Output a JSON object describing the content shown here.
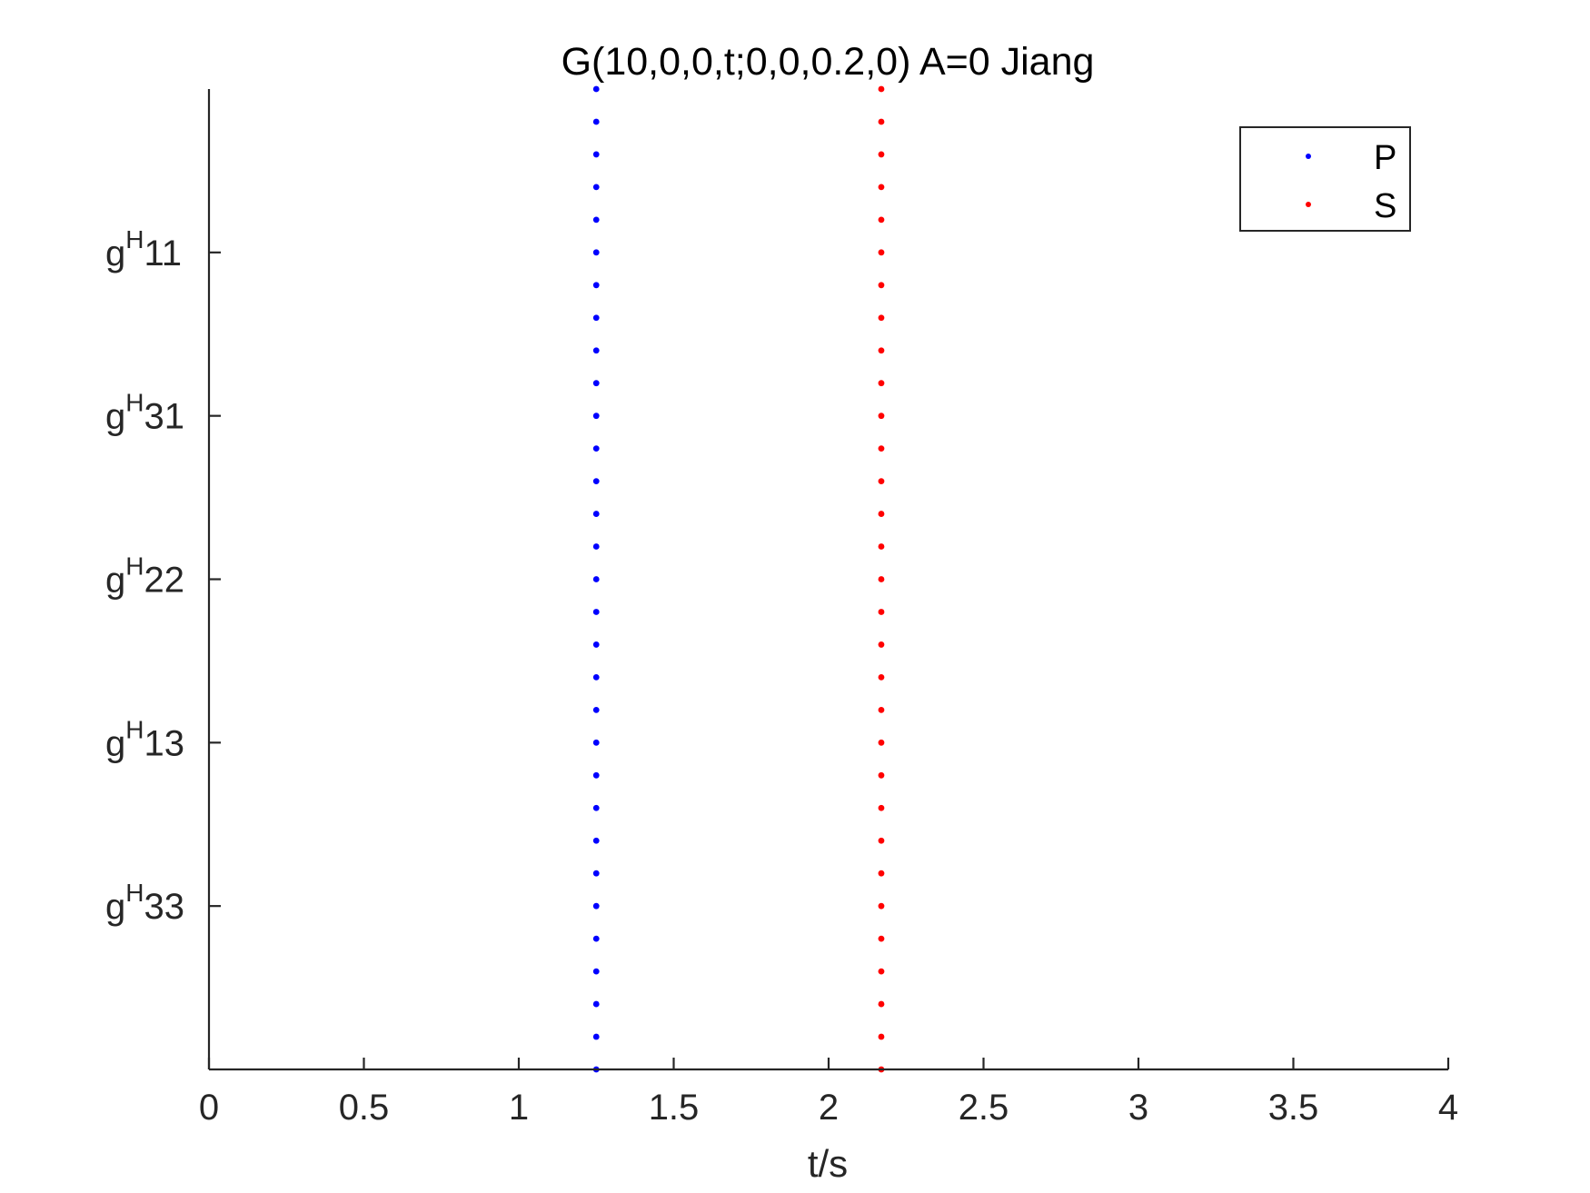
{
  "chart_data": {
    "type": "scatter",
    "title": "G(10,0,0,t;0,0,0.2,0) A=0 Jiang",
    "xlabel": "t/s",
    "ylabel": "",
    "xlim": [
      0,
      4
    ],
    "ylim": [
      0,
      30
    ],
    "x_ticks": [
      "0",
      "0.5",
      "1",
      "1.5",
      "2",
      "2.5",
      "3",
      "3.5",
      "4"
    ],
    "y_ticks": [
      {
        "value": 5,
        "base": "g",
        "sup": "H",
        "sub": "33"
      },
      {
        "value": 10,
        "base": "g",
        "sup": "H",
        "sub": "13"
      },
      {
        "value": 15,
        "base": "g",
        "sup": "H",
        "sub": "22"
      },
      {
        "value": 20,
        "base": "g",
        "sup": "H",
        "sub": "31"
      },
      {
        "value": 25,
        "base": "g",
        "sup": "H",
        "sub": "11"
      }
    ],
    "series": [
      {
        "name": "P",
        "color": "#0000ff",
        "x": 1.25,
        "y_from": 0,
        "y_to": 30,
        "y_step": 1
      },
      {
        "name": "S",
        "color": "#ff0000",
        "x": 2.17,
        "y_from": 0,
        "y_to": 30,
        "y_step": 1
      }
    ],
    "legend": {
      "position": "top-right",
      "entries": [
        "P",
        "S"
      ]
    },
    "grid": false
  }
}
